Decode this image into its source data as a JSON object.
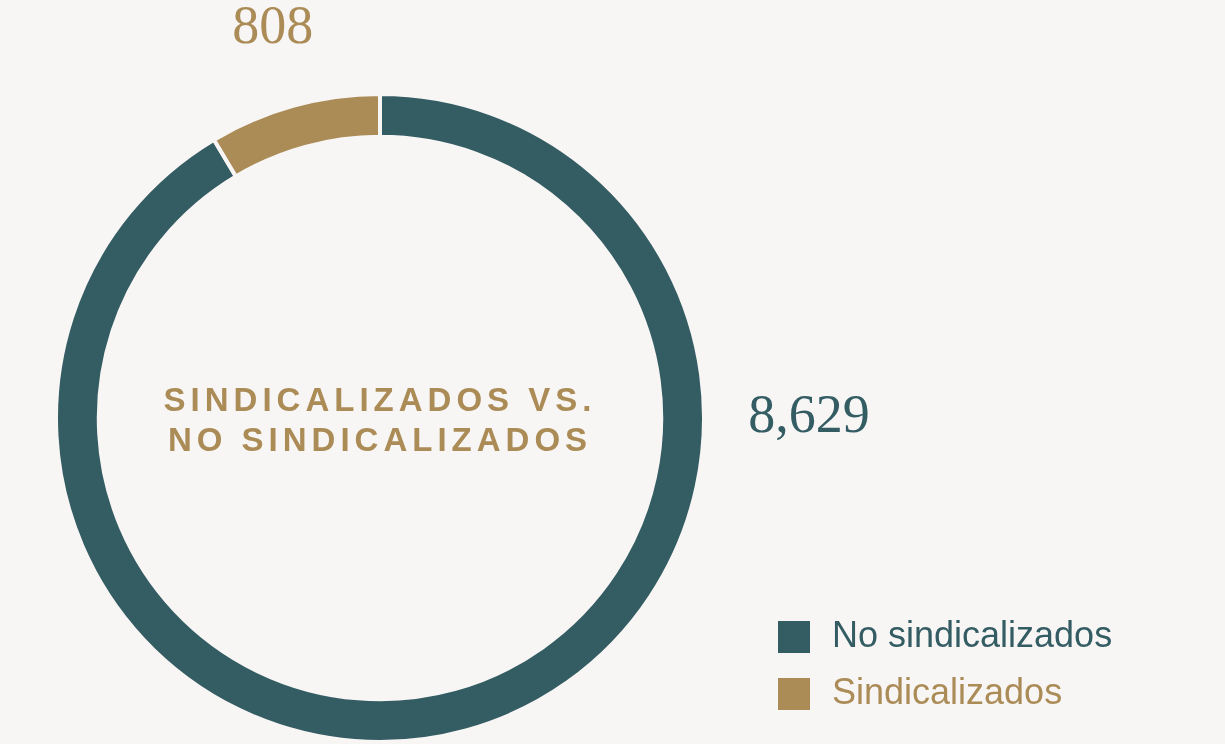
{
  "chart_data": {
    "type": "donut",
    "title": "SINDICALIZADOS VS. NO SINDICALIZADOS",
    "categories": [
      "No sindicalizados",
      "Sindicalizados"
    ],
    "values": [
      8629,
      808
    ],
    "colors": [
      "#345c63",
      "#ab8c57"
    ],
    "value_labels": [
      "8,629",
      "808"
    ],
    "legend": "bottom right"
  }
}
